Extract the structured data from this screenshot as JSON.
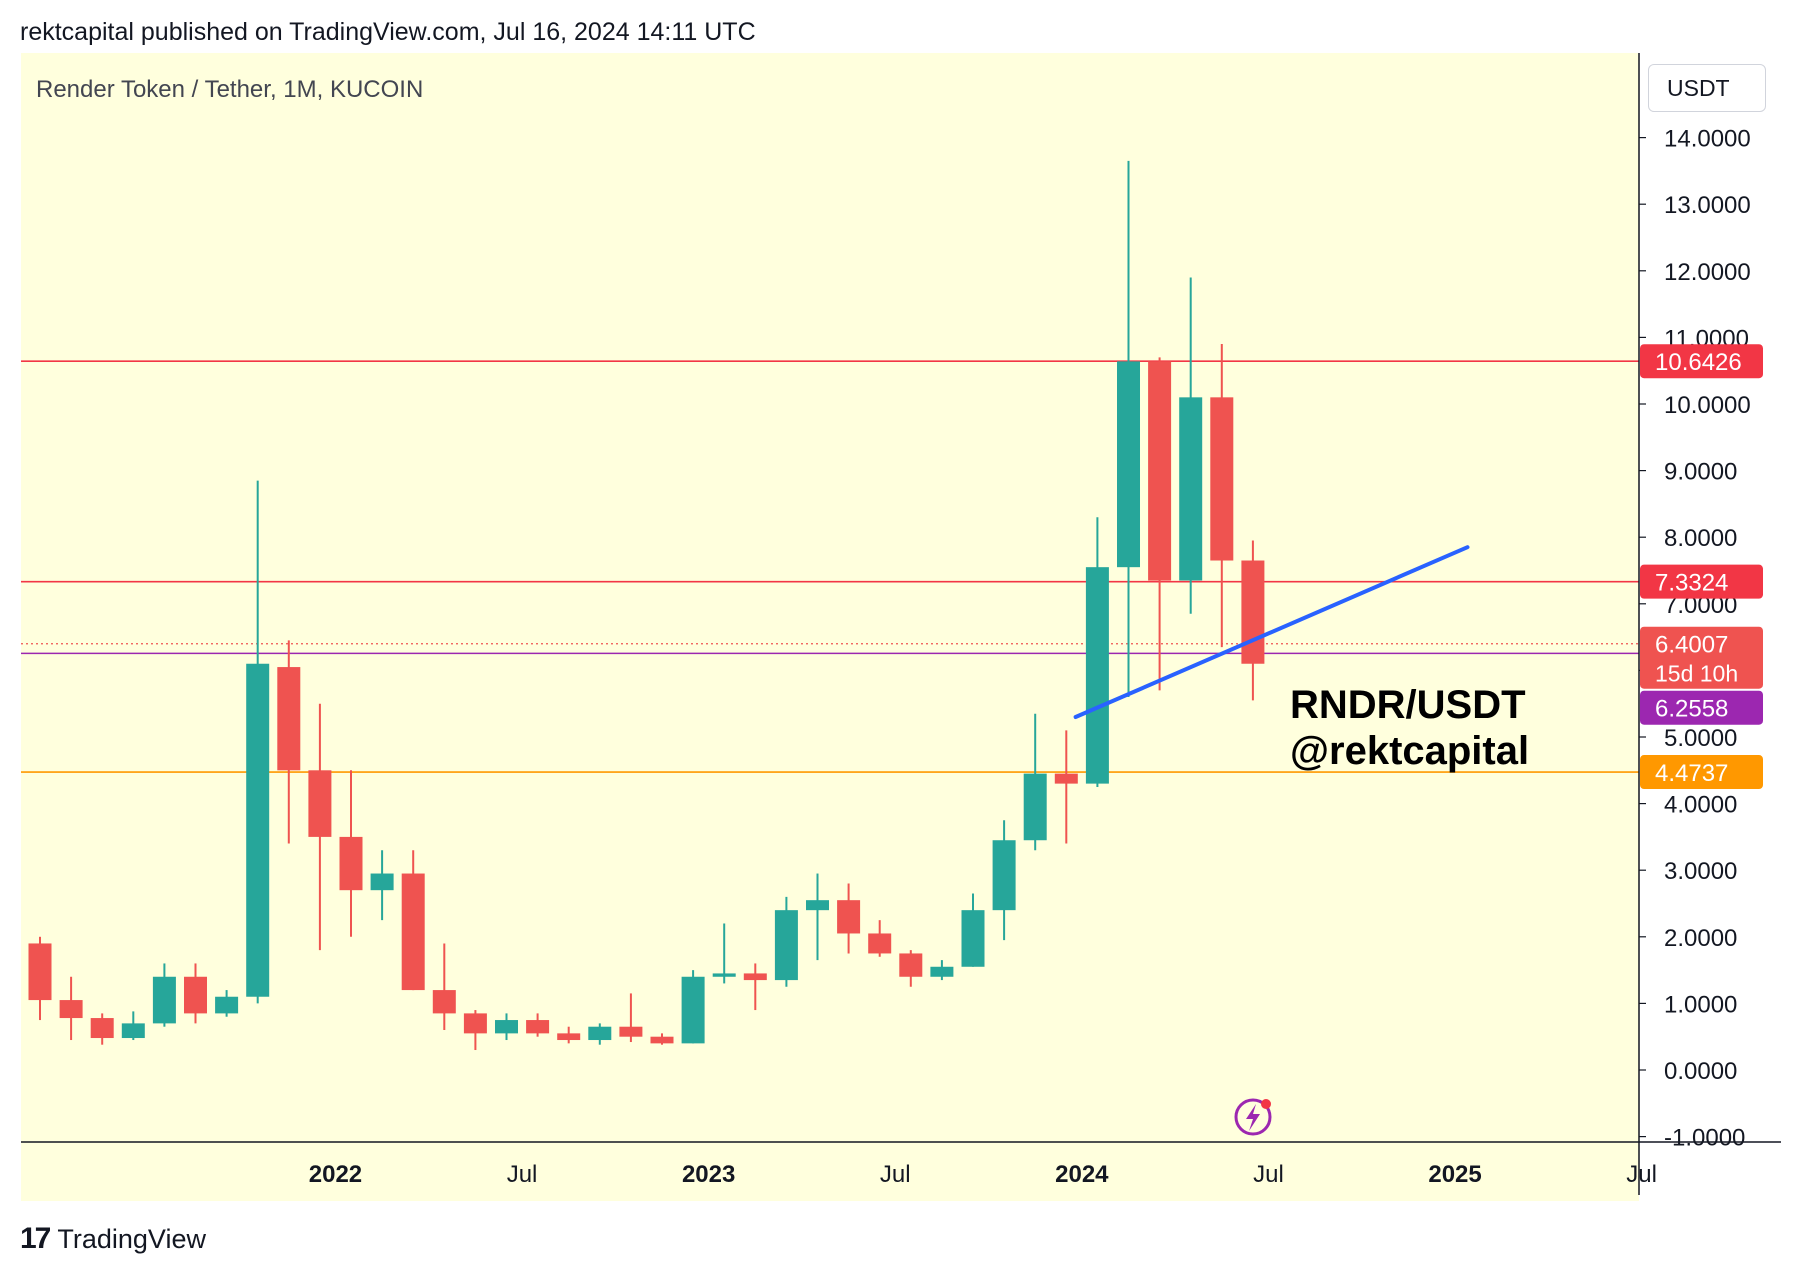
{
  "header": {
    "publish_line": "rektcapital published on TradingView.com, Jul 16, 2024 14:11 UTC"
  },
  "chart_header": {
    "symbol_line": "Render Token / Tether, 1M, KUCOIN",
    "currency": "USDT"
  },
  "watermark": {
    "line1": "RNDR/USDT",
    "line2": "@rektcapital"
  },
  "footer": {
    "logo_mark": "17",
    "brand": "TradingView"
  },
  "colors": {
    "background": "#ffffdd",
    "up": "#26a69a",
    "down": "#ef5350",
    "resistance": "#f23645",
    "support": "#ff9800",
    "current": "#9c27b0",
    "trendline": "#2962ff"
  },
  "chart_data": {
    "type": "candlestick",
    "title": "Render Token / Tether, 1M, KUCOIN",
    "interval": "1M",
    "ylim": [
      -1,
      15
    ],
    "y_ticks": [
      "14.0000",
      "13.0000",
      "12.0000",
      "11.0000",
      "10.0000",
      "9.0000",
      "8.0000",
      "7.0000",
      "6.0000",
      "5.0000",
      "4.0000",
      "3.0000",
      "2.0000",
      "1.0000",
      "0.0000",
      "-1.0000"
    ],
    "y_tick_values": [
      14,
      13,
      12,
      11,
      10,
      9,
      8,
      7,
      6,
      5,
      4,
      3,
      2,
      1,
      0,
      -1
    ],
    "x_labels": [
      {
        "label": "2022",
        "index": 9.5,
        "bold": true
      },
      {
        "label": "Jul",
        "index": 15.5,
        "bold": false
      },
      {
        "label": "2023",
        "index": 21.5,
        "bold": true
      },
      {
        "label": "Jul",
        "index": 27.5,
        "bold": false
      },
      {
        "label": "2024",
        "index": 33.5,
        "bold": true
      },
      {
        "label": "Jul",
        "index": 39.5,
        "bold": false
      },
      {
        "label": "2025",
        "index": 45.5,
        "bold": true
      },
      {
        "label": "Jul",
        "index": 51.5,
        "bold": false
      }
    ],
    "candles": [
      {
        "o": 1.9,
        "h": 2.0,
        "l": 0.75,
        "c": 1.05
      },
      {
        "o": 1.05,
        "h": 1.4,
        "l": 0.45,
        "c": 0.78
      },
      {
        "o": 0.78,
        "h": 0.85,
        "l": 0.38,
        "c": 0.48
      },
      {
        "o": 0.48,
        "h": 0.88,
        "l": 0.45,
        "c": 0.7
      },
      {
        "o": 0.7,
        "h": 1.6,
        "l": 0.65,
        "c": 1.4
      },
      {
        "o": 1.4,
        "h": 1.6,
        "l": 0.7,
        "c": 0.85
      },
      {
        "o": 0.85,
        "h": 1.2,
        "l": 0.8,
        "c": 1.1
      },
      {
        "o": 1.1,
        "h": 8.85,
        "l": 1.0,
        "c": 6.1
      },
      {
        "o": 6.05,
        "h": 6.45,
        "l": 3.4,
        "c": 4.5
      },
      {
        "o": 4.5,
        "h": 5.5,
        "l": 1.8,
        "c": 3.5
      },
      {
        "o": 3.5,
        "h": 4.5,
        "l": 2.0,
        "c": 2.7
      },
      {
        "o": 2.7,
        "h": 3.3,
        "l": 2.25,
        "c": 2.95
      },
      {
        "o": 2.95,
        "h": 3.3,
        "l": 1.2,
        "c": 1.2
      },
      {
        "o": 1.2,
        "h": 1.9,
        "l": 0.6,
        "c": 0.85
      },
      {
        "o": 0.85,
        "h": 0.9,
        "l": 0.3,
        "c": 0.55
      },
      {
        "o": 0.55,
        "h": 0.85,
        "l": 0.45,
        "c": 0.75
      },
      {
        "o": 0.75,
        "h": 0.85,
        "l": 0.5,
        "c": 0.55
      },
      {
        "o": 0.55,
        "h": 0.65,
        "l": 0.4,
        "c": 0.45
      },
      {
        "o": 0.45,
        "h": 0.7,
        "l": 0.38,
        "c": 0.65
      },
      {
        "o": 0.65,
        "h": 1.15,
        "l": 0.42,
        "c": 0.5
      },
      {
        "o": 0.5,
        "h": 0.55,
        "l": 0.38,
        "c": 0.4
      },
      {
        "o": 0.4,
        "h": 1.5,
        "l": 0.4,
        "c": 1.4
      },
      {
        "o": 1.4,
        "h": 2.2,
        "l": 1.3,
        "c": 1.45
      },
      {
        "o": 1.45,
        "h": 1.6,
        "l": 0.9,
        "c": 1.35
      },
      {
        "o": 1.35,
        "h": 2.6,
        "l": 1.25,
        "c": 2.4
      },
      {
        "o": 2.4,
        "h": 2.95,
        "l": 1.65,
        "c": 2.55
      },
      {
        "o": 2.55,
        "h": 2.8,
        "l": 1.75,
        "c": 2.05
      },
      {
        "o": 2.05,
        "h": 2.25,
        "l": 1.7,
        "c": 1.75
      },
      {
        "o": 1.75,
        "h": 1.8,
        "l": 1.25,
        "c": 1.4
      },
      {
        "o": 1.4,
        "h": 1.65,
        "l": 1.35,
        "c": 1.55
      },
      {
        "o": 1.55,
        "h": 2.65,
        "l": 1.55,
        "c": 2.4
      },
      {
        "o": 2.4,
        "h": 3.75,
        "l": 1.95,
        "c": 3.45
      },
      {
        "o": 3.45,
        "h": 5.35,
        "l": 3.3,
        "c": 4.45
      },
      {
        "o": 4.45,
        "h": 5.1,
        "l": 3.4,
        "c": 4.3
      },
      {
        "o": 4.3,
        "h": 8.3,
        "l": 4.25,
        "c": 7.55
      },
      {
        "o": 7.55,
        "h": 13.65,
        "l": 5.6,
        "c": 10.64
      },
      {
        "o": 10.64,
        "h": 10.7,
        "l": 5.7,
        "c": 7.35
      },
      {
        "o": 7.35,
        "h": 11.9,
        "l": 6.85,
        "c": 10.1
      },
      {
        "o": 10.1,
        "h": 10.9,
        "l": 6.35,
        "c": 7.65
      },
      {
        "o": 7.65,
        "h": 7.95,
        "l": 5.55,
        "c": 6.1
      }
    ],
    "horizontal_lines": [
      {
        "value": 10.6426,
        "label": "10.6426",
        "color": "#f23645"
      },
      {
        "value": 7.3324,
        "label": "7.3324",
        "color": "#f23645"
      },
      {
        "value": 6.2558,
        "label": "6.2558",
        "color": "#9c27b0"
      },
      {
        "value": 4.4737,
        "label": "4.4737",
        "color": "#ff9800"
      }
    ],
    "current_price": {
      "value": 6.4007,
      "label": "6.4007",
      "countdown": "15d 10h",
      "color": "#ef5350"
    },
    "trendline": {
      "from": {
        "index": 33.3,
        "value": 5.3
      },
      "to": {
        "index": 45.9,
        "value": 7.85
      },
      "color": "#2962ff"
    }
  }
}
